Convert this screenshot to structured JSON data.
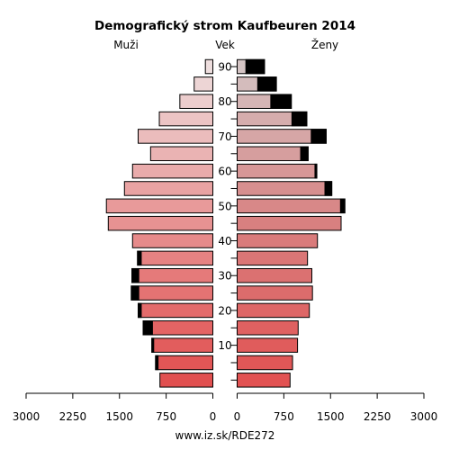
{
  "chart_data": {
    "type": "bar",
    "title": "Demografický strom Kaufbeuren 2014",
    "left_label": "Muži",
    "center_label": "Vek",
    "right_label": "Ženy",
    "footer": "www.iz.sk/RDE272",
    "age_ticks": [
      "10",
      "20",
      "30",
      "40",
      "50",
      "60",
      "70",
      "80",
      "90"
    ],
    "x_ticks_left": [
      "3000",
      "2250",
      "1500",
      "750",
      "0"
    ],
    "x_ticks_right": [
      "0",
      "750",
      "1500",
      "2250",
      "3000"
    ],
    "xlim": [
      0,
      3000
    ],
    "age_groups": [
      "0-4",
      "5-9",
      "10-14",
      "15-19",
      "20-24",
      "25-29",
      "30-34",
      "35-39",
      "40-44",
      "45-49",
      "50-54",
      "55-59",
      "60-64",
      "65-69",
      "70-74",
      "75-79",
      "80-84",
      "85-89",
      "90+"
    ],
    "series": [
      {
        "name": "Muži",
        "values": [
          850,
          920,
          980,
          1120,
          1200,
          1310,
          1300,
          1210,
          1290,
          1680,
          1710,
          1420,
          1290,
          1000,
          1200,
          860,
          530,
          300,
          120
        ]
      },
      {
        "name": "Ženy",
        "values": [
          850,
          890,
          970,
          980,
          1160,
          1210,
          1200,
          1130,
          1290,
          1670,
          1730,
          1520,
          1280,
          1140,
          1430,
          1120,
          870,
          630,
          440
        ]
      }
    ],
    "male_dark": [
      0,
      40,
      30,
      150,
      50,
      120,
      110,
      60,
      0,
      0,
      0,
      0,
      0,
      0,
      0,
      0,
      0,
      0,
      0
    ],
    "female_dark": [
      0,
      0,
      0,
      0,
      0,
      0,
      0,
      0,
      0,
      0,
      70,
      110,
      30,
      120,
      240,
      240,
      330,
      300,
      300
    ]
  }
}
